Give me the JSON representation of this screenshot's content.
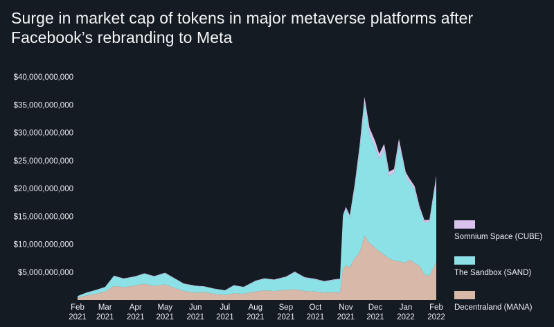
{
  "chart_data": {
    "type": "area",
    "stacked": true,
    "title": "Surge in market cap of tokens in major metaverse platforms after Facebook’s rebranding to Meta",
    "xlabel": "",
    "ylabel": "",
    "ylim": [
      0,
      40000000000
    ],
    "y_ticks": [
      {
        "value": 5000000000,
        "label": "$5,000,000,000"
      },
      {
        "value": 10000000000,
        "label": "$10,000,000,000"
      },
      {
        "value": 15000000000,
        "label": "$15,000,000,000"
      },
      {
        "value": 20000000000,
        "label": "$20,000,000,000"
      },
      {
        "value": 25000000000,
        "label": "$25,000,000,000"
      },
      {
        "value": 30000000000,
        "label": "$30,000,000,000"
      },
      {
        "value": 35000000000,
        "label": "$35,000,000,000"
      },
      {
        "value": 40000000000,
        "label": "$40,000,000,000"
      }
    ],
    "xlim": [
      "2021-02-01",
      "2022-02-01"
    ],
    "x_ticks": [
      {
        "date": "2021-02-01",
        "month": "Feb",
        "year": "2021"
      },
      {
        "date": "2021-03-01",
        "month": "Mar",
        "year": "2021"
      },
      {
        "date": "2021-04-01",
        "month": "Apr",
        "year": "2021"
      },
      {
        "date": "2021-05-01",
        "month": "May",
        "year": "2021"
      },
      {
        "date": "2021-06-01",
        "month": "Jun",
        "year": "2021"
      },
      {
        "date": "2021-07-01",
        "month": "Jul",
        "year": "2021"
      },
      {
        "date": "2021-08-01",
        "month": "Aug",
        "year": "2021"
      },
      {
        "date": "2021-09-01",
        "month": "Sep",
        "year": "2021"
      },
      {
        "date": "2021-10-01",
        "month": "Oct",
        "year": "2021"
      },
      {
        "date": "2021-11-01",
        "month": "Nov",
        "year": "2021"
      },
      {
        "date": "2021-12-01",
        "month": "Dec",
        "year": "2021"
      },
      {
        "date": "2022-01-01",
        "month": "Jan",
        "year": "2022"
      },
      {
        "date": "2022-02-01",
        "month": "Feb",
        "year": "2022"
      }
    ],
    "grid": false,
    "legend_position": "right",
    "x": [
      "2021-02-01",
      "2021-02-10",
      "2021-02-20",
      "2021-03-01",
      "2021-03-10",
      "2021-03-20",
      "2021-04-01",
      "2021-04-10",
      "2021-04-20",
      "2021-05-01",
      "2021-05-10",
      "2021-05-20",
      "2021-06-01",
      "2021-06-10",
      "2021-06-20",
      "2021-07-01",
      "2021-07-10",
      "2021-07-20",
      "2021-08-01",
      "2021-08-10",
      "2021-08-20",
      "2021-09-01",
      "2021-09-10",
      "2021-09-20",
      "2021-10-01",
      "2021-10-10",
      "2021-10-20",
      "2021-10-26",
      "2021-10-29",
      "2021-11-01",
      "2021-11-05",
      "2021-11-10",
      "2021-11-15",
      "2021-11-20",
      "2021-11-25",
      "2021-12-01",
      "2021-12-05",
      "2021-12-10",
      "2021-12-15",
      "2021-12-20",
      "2021-12-25",
      "2022-01-01",
      "2022-01-05",
      "2022-01-10",
      "2022-01-15",
      "2022-01-20",
      "2022-01-25",
      "2022-02-01"
    ],
    "series": [
      {
        "name": "Decentraland (MANA)",
        "color": "#d8b8a8",
        "values": [
          400000000.0,
          800000000.0,
          1100000000.0,
          1500000000.0,
          2500000000.0,
          2300000000.0,
          2600000000.0,
          2900000000.0,
          2500000000.0,
          2800000000.0,
          2200000000.0,
          1600000000.0,
          1300000000.0,
          1400000000.0,
          1100000000.0,
          900000000.0,
          1200000000.0,
          1100000000.0,
          1500000000.0,
          1700000000.0,
          1600000000.0,
          1800000000.0,
          1900000000.0,
          1600000000.0,
          1500000000.0,
          1300000000.0,
          1400000000.0,
          1300000000.0,
          5500000000.0,
          6200000000.0,
          5900000000.0,
          7500000000.0,
          8500000000.0,
          11500000000.0,
          10200000000.0,
          9300000000.0,
          8700000000.0,
          8100000000.0,
          7400000000.0,
          7100000000.0,
          6900000000.0,
          6700000000.0,
          7200000000.0,
          6600000000.0,
          6100000000.0,
          4600000000.0,
          4300000000.0,
          6800000000.0
        ]
      },
      {
        "name": "The Sandbox (SAND)",
        "color": "#8ce1e7",
        "values": [
          300000000.0,
          500000000.0,
          700000000.0,
          800000000.0,
          1800000000.0,
          1500000000.0,
          1600000000.0,
          1800000000.0,
          1700000000.0,
          2000000000.0,
          1700000000.0,
          1300000000.0,
          1200000000.0,
          1000000000.0,
          900000000.0,
          800000000.0,
          1400000000.0,
          1200000000.0,
          1900000000.0,
          2100000000.0,
          2000000000.0,
          2300000000.0,
          3100000000.0,
          2400000000.0,
          2200000000.0,
          2000000000.0,
          2200000000.0,
          2400000000.0,
          9500000000.0,
          10200000000.0,
          8900000000.0,
          12800000000.0,
          18400000000.0,
          23600000000.0,
          19500000000.0,
          18000000000.0,
          16500000000.0,
          18900000000.0,
          14800000000.0,
          15700000000.0,
          21100000000.0,
          15600000000.0,
          13800000000.0,
          13200000000.0,
          10200000000.0,
          9300000000.0,
          9700000000.0,
          14900000000.0
        ]
      },
      {
        "name": "Somnium Space (CUBE)",
        "color": "#d9c3ec",
        "values": [
          20000000.0,
          30000000.0,
          40000000.0,
          50000000.0,
          60000000.0,
          60000000.0,
          70000000.0,
          80000000.0,
          80000000.0,
          90000000.0,
          80000000.0,
          70000000.0,
          60000000.0,
          60000000.0,
          50000000.0,
          50000000.0,
          60000000.0,
          60000000.0,
          70000000.0,
          80000000.0,
          80000000.0,
          90000000.0,
          100000000.0,
          100000000.0,
          90000000.0,
          90000000.0,
          100000000.0,
          100000000.0,
          200000000.0,
          300000000.0,
          400000000.0,
          500000000.0,
          800000000.0,
          1300000000.0,
          1200000000.0,
          1100000000.0,
          1000000000.0,
          1000000000.0,
          800000000.0,
          700000000.0,
          900000000.0,
          600000000.0,
          700000000.0,
          600000000.0,
          500000000.0,
          400000000.0,
          400000000.0,
          600000000.0
        ]
      }
    ]
  }
}
